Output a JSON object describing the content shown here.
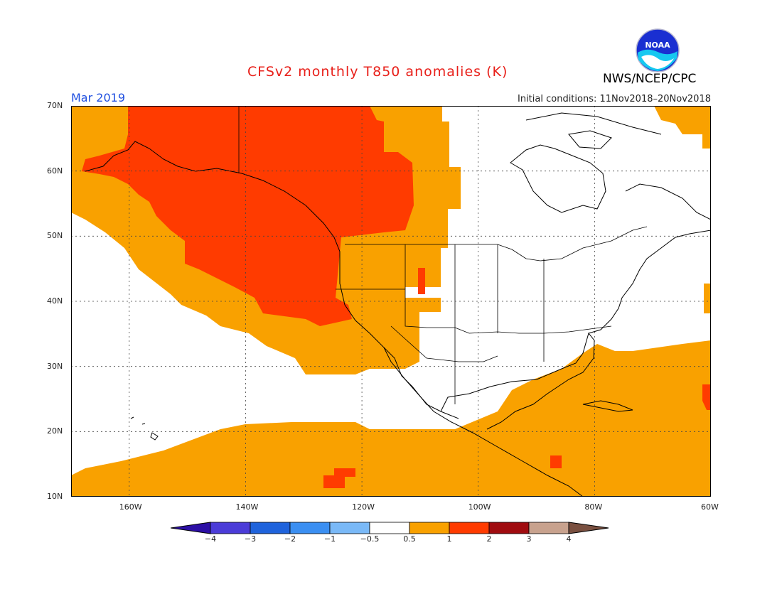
{
  "header": {
    "title": "CFSv2 monthly T850 anomalies (K)",
    "organization": "NWS/NCEP/CPC",
    "valid_period": "Mar 2019",
    "initial_conditions": "Initial conditions: 11Nov2018–20Nov2018",
    "logo_text": "NOAA"
  },
  "map": {
    "projection": "cylindrical equidistant",
    "lon_range": [
      -170,
      -60
    ],
    "lat_range": [
      10,
      70
    ],
    "lat_labels": [
      "70N",
      "60N",
      "50N",
      "40N",
      "30N",
      "20N",
      "10N"
    ],
    "lon_labels": [
      "160W",
      "140W",
      "120W",
      "100W",
      "80W",
      "60W"
    ],
    "colors": {
      "warm_0_5_to_1": "#f9a100",
      "warm_1_to_2": "#ff3b00",
      "neutral": "#ffffff",
      "coastline": "#000000",
      "grid": "#333333"
    }
  },
  "colorbar": {
    "labels": [
      "−4",
      "−3",
      "−2",
      "−1",
      "−0.5",
      "0.5",
      "1",
      "2",
      "3",
      "4"
    ],
    "colors": [
      "#2c0fa5",
      "#4b3cd8",
      "#1f63dc",
      "#3b8ff2",
      "#7ab9f7",
      "#ffffff",
      "#f9a100",
      "#ff3b00",
      "#a00c10",
      "#c8a28e",
      "#7a5040"
    ]
  }
}
